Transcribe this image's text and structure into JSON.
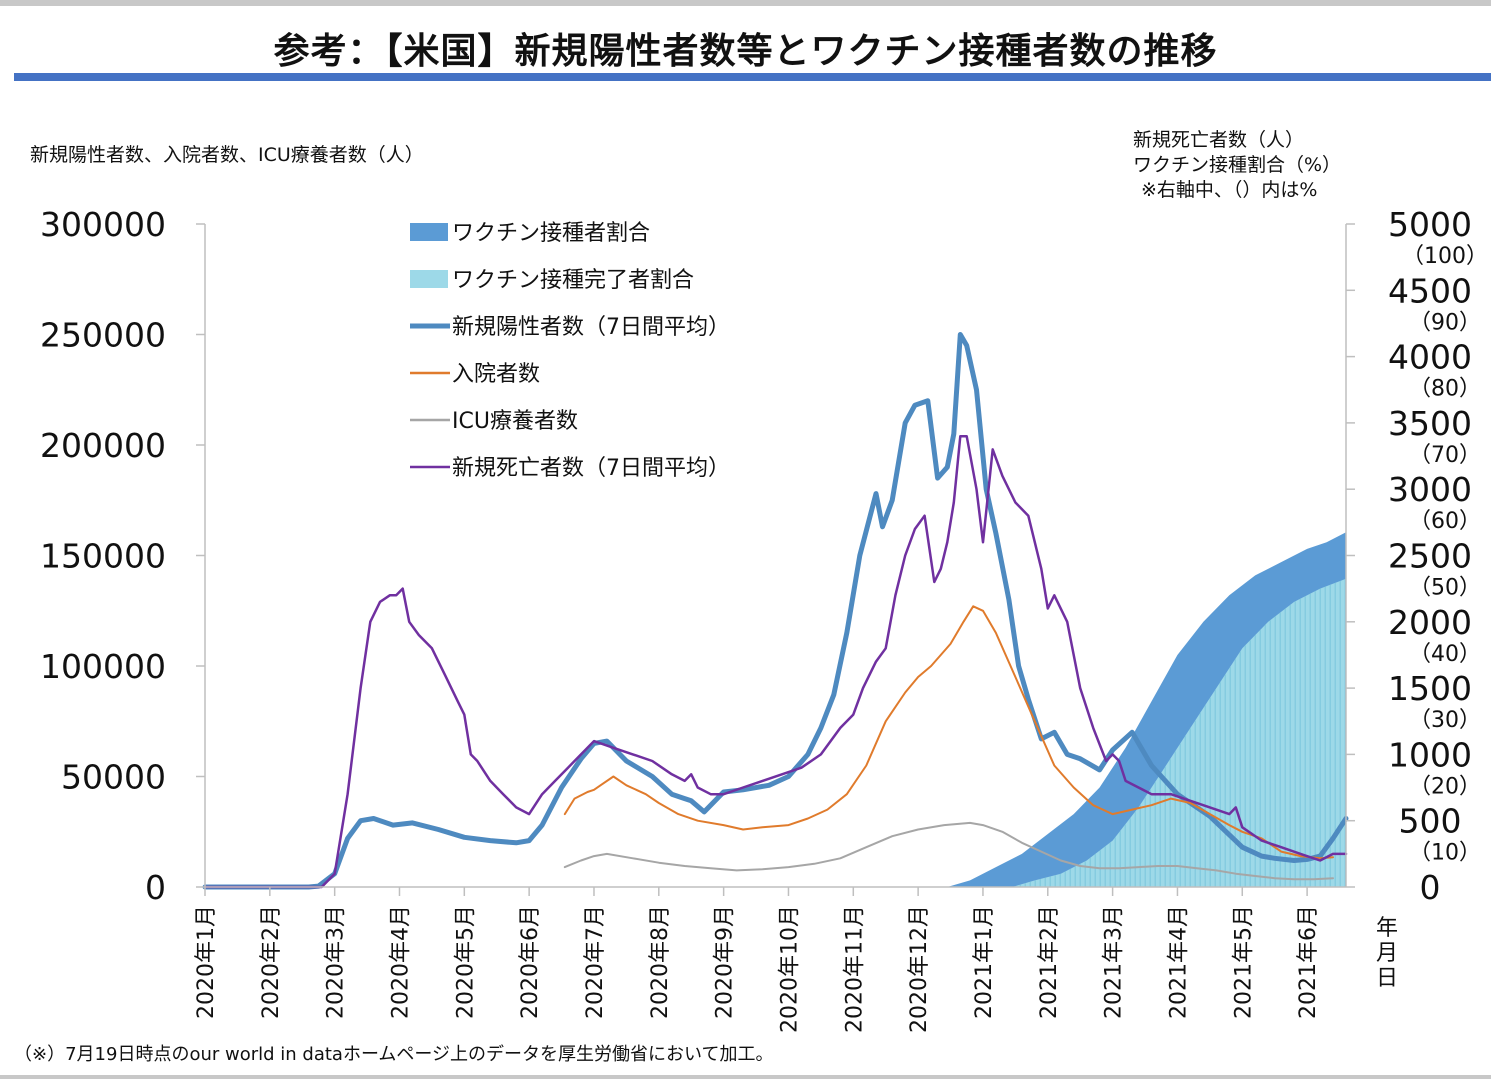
{
  "title": "参考：【米国】新規陽性者数等とワクチン接種者数の推移",
  "left_axis_title": "新規陽性者数、入院者数、ICU療養者数（人）",
  "right_axis_title": [
    "新規死亡者数（人）",
    "ワクチン接種割合（%）",
    "※右軸中、（）内は%"
  ],
  "footnote": "（※）7月19日時点のour world in dataホームページ上のデータを厚生労働省において加工。",
  "x_unit_label": [
    "年",
    "月",
    "日"
  ],
  "chart_data": {
    "type": "line",
    "x_ticks": [
      "2020年1月",
      "2020年2月",
      "2020年3月",
      "2020年4月",
      "2020年5月",
      "2020年6月",
      "2020年7月",
      "2020年8月",
      "2020年9月",
      "2020年10月",
      "2020年11月",
      "2020年12月",
      "2021年1月",
      "2021年2月",
      "2021年3月",
      "2021年4月",
      "2021年5月",
      "2021年6月"
    ],
    "x_range_months": [
      0,
      17.6
    ],
    "y_left_ticks": [
      "300000",
      "250000",
      "200000",
      "150000",
      "100000",
      "50000",
      "0"
    ],
    "y_left_range": [
      0,
      300000
    ],
    "y_right_ticks": [
      {
        "main": "5000",
        "sub": "（100）"
      },
      {
        "main": "4500",
        "sub": "（90）"
      },
      {
        "main": "4000",
        "sub": "（80）"
      },
      {
        "main": "3500",
        "sub": "（70）"
      },
      {
        "main": "3000",
        "sub": "（60）"
      },
      {
        "main": "2500",
        "sub": "（50）"
      },
      {
        "main": "2000",
        "sub": "（40）"
      },
      {
        "main": "1500",
        "sub": "（30）"
      },
      {
        "main": "1000",
        "sub": "（20）"
      },
      {
        "main": "500",
        "sub": "（10）"
      },
      {
        "main": "0",
        "sub": ""
      }
    ],
    "y_right_range": [
      0,
      5000
    ],
    "series": [
      {
        "name": "ワクチン接種者割合",
        "axis": "right_pct",
        "color": "#5b9bd5",
        "style": "area",
        "x": [
          11.45,
          11.8,
          12.2,
          12.6,
          13.0,
          13.4,
          13.8,
          14.2,
          14.6,
          15.0,
          15.4,
          15.8,
          16.2,
          16.6,
          17.0,
          17.3,
          17.6
        ],
        "y": [
          0,
          1,
          3,
          5,
          8,
          11,
          15,
          21,
          28,
          35,
          40,
          44,
          47,
          49,
          51,
          52,
          53.5
        ]
      },
      {
        "name": "ワクチン接種完了者割合",
        "axis": "right_pct",
        "color": "#9dd9e8",
        "style": "area",
        "x": [
          12.45,
          12.8,
          13.2,
          13.6,
          14.0,
          14.4,
          14.8,
          15.2,
          15.6,
          16.0,
          16.4,
          16.8,
          17.2,
          17.6
        ],
        "y": [
          0,
          1,
          2,
          4,
          7,
          12,
          18,
          24,
          30,
          36,
          40,
          43,
          45,
          46.5
        ]
      },
      {
        "name": "新規陽性者数（7日間平均）",
        "axis": "left",
        "color": "#4e8ac0",
        "style": "line",
        "width": 5,
        "x": [
          0,
          1.0,
          1.6,
          1.75,
          2.0,
          2.2,
          2.4,
          2.6,
          2.9,
          3.2,
          3.6,
          4.0,
          4.4,
          4.8,
          5.0,
          5.2,
          5.5,
          5.8,
          6.0,
          6.2,
          6.5,
          6.9,
          7.2,
          7.4,
          7.5,
          7.7,
          8.0,
          8.3,
          8.7,
          9.0,
          9.3,
          9.5,
          9.7,
          9.9,
          10.1,
          10.35,
          10.45,
          10.6,
          10.8,
          10.95,
          11.15,
          11.3,
          11.45,
          11.55,
          11.65,
          11.75,
          11.9,
          12.05,
          12.2,
          12.4,
          12.55,
          12.7,
          12.9,
          13.1,
          13.3,
          13.5,
          13.8,
          14.0,
          14.3,
          14.6,
          15.0,
          15.5,
          16.0,
          16.3,
          16.5,
          16.8,
          17.0,
          17.2,
          17.4,
          17.6
        ],
        "y": [
          0,
          0,
          0,
          400,
          6000,
          22000,
          30000,
          31000,
          28000,
          29000,
          26000,
          22500,
          21000,
          20000,
          21000,
          28000,
          45000,
          58000,
          65000,
          66000,
          57000,
          50000,
          42000,
          40000,
          39000,
          34000,
          43000,
          44000,
          46000,
          50000,
          60000,
          72000,
          87000,
          115000,
          150000,
          178000,
          163000,
          175000,
          210000,
          218000,
          220000,
          185000,
          190000,
          205000,
          250000,
          245000,
          225000,
          180000,
          160000,
          130000,
          100000,
          85000,
          67000,
          70000,
          60000,
          58000,
          53000,
          62000,
          70000,
          55000,
          42000,
          32000,
          18000,
          14000,
          13000,
          12000,
          12500,
          14000,
          22000,
          31000
        ]
      },
      {
        "name": "入院者数",
        "axis": "left",
        "color": "#e07b2c",
        "style": "line",
        "width": 2,
        "x": [
          5.55,
          5.7,
          5.9,
          6.0,
          6.1,
          6.3,
          6.5,
          6.8,
          7.0,
          7.3,
          7.6,
          8.0,
          8.3,
          8.6,
          9.0,
          9.3,
          9.6,
          9.9,
          10.2,
          10.5,
          10.8,
          11.0,
          11.2,
          11.5,
          11.7,
          11.85,
          12.0,
          12.2,
          12.5,
          12.8,
          13.1,
          13.4,
          13.7,
          14.0,
          14.3,
          14.6,
          14.9,
          15.2,
          15.5,
          15.8,
          16.0,
          16.3,
          16.6,
          16.9,
          17.2,
          17.4
        ],
        "y": [
          33000,
          40000,
          43000,
          44000,
          46000,
          50000,
          46000,
          42000,
          38000,
          33000,
          30000,
          28000,
          26000,
          27000,
          28000,
          31000,
          35000,
          42000,
          55000,
          75000,
          88000,
          95000,
          100000,
          110000,
          120000,
          127000,
          125000,
          115000,
          95000,
          75000,
          55000,
          45000,
          37000,
          33000,
          35000,
          37000,
          40000,
          38000,
          33000,
          28000,
          25000,
          22000,
          16000,
          14000,
          13000,
          13500
        ]
      },
      {
        "name": "ICU療養者数",
        "axis": "left",
        "color": "#a6a6a6",
        "style": "line",
        "width": 2,
        "x": [
          5.55,
          5.8,
          6.0,
          6.2,
          6.6,
          7.0,
          7.4,
          7.8,
          8.2,
          8.6,
          9.0,
          9.4,
          9.8,
          10.2,
          10.6,
          11.0,
          11.4,
          11.8,
          12.0,
          12.3,
          12.6,
          12.9,
          13.2,
          13.5,
          13.8,
          14.1,
          14.4,
          14.7,
          15.0,
          15.3,
          15.6,
          15.9,
          16.2,
          16.5,
          16.8,
          17.1,
          17.4
        ],
        "y": [
          9000,
          12000,
          14000,
          15000,
          13000,
          11000,
          9500,
          8500,
          7500,
          8000,
          9000,
          10500,
          13000,
          18000,
          23000,
          26000,
          28000,
          29000,
          28000,
          25000,
          20000,
          16000,
          12000,
          9500,
          8500,
          8500,
          9000,
          9500,
          9500,
          8500,
          7500,
          6000,
          5000,
          4000,
          3500,
          3500,
          4000
        ]
      },
      {
        "name": "新規死亡者数（7日間平均）",
        "axis": "right",
        "color": "#7030a0",
        "style": "line",
        "width": 2.5,
        "x": [
          0,
          1.8,
          2.0,
          2.2,
          2.4,
          2.55,
          2.7,
          2.85,
          2.95,
          3.05,
          3.15,
          3.3,
          3.5,
          3.7,
          3.9,
          4.0,
          4.1,
          4.2,
          4.4,
          4.6,
          4.8,
          5.0,
          5.2,
          5.4,
          5.6,
          5.8,
          6.0,
          6.3,
          6.6,
          6.9,
          7.2,
          7.4,
          7.5,
          7.6,
          7.8,
          8.0,
          8.3,
          8.6,
          8.9,
          9.2,
          9.5,
          9.8,
          10.0,
          10.15,
          10.25,
          10.35,
          10.5,
          10.65,
          10.8,
          10.95,
          11.1,
          11.25,
          11.35,
          11.45,
          11.55,
          11.65,
          11.75,
          11.9,
          12.0,
          12.15,
          12.3,
          12.5,
          12.7,
          12.9,
          13.0,
          13.1,
          13.3,
          13.5,
          13.7,
          13.9,
          14.0,
          14.1,
          14.2,
          14.4,
          14.6,
          14.9,
          15.2,
          15.5,
          15.8,
          15.9,
          16.0,
          16.3,
          16.6,
          16.9,
          17.2,
          17.4,
          17.6
        ],
        "y": [
          0,
          0,
          100,
          700,
          1500,
          2000,
          2150,
          2200,
          2200,
          2250,
          2000,
          1900,
          1800,
          1600,
          1400,
          1300,
          1000,
          950,
          800,
          700,
          600,
          550,
          700,
          800,
          900,
          1000,
          1100,
          1050,
          1000,
          950,
          850,
          800,
          850,
          750,
          700,
          700,
          750,
          800,
          850,
          900,
          1000,
          1200,
          1300,
          1500,
          1600,
          1700,
          1800,
          2200,
          2500,
          2700,
          2800,
          2300,
          2400,
          2600,
          2900,
          3400,
          3400,
          3000,
          2600,
          3300,
          3100,
          2900,
          2800,
          2400,
          2100,
          2200,
          2000,
          1500,
          1200,
          950,
          1000,
          950,
          800,
          750,
          700,
          700,
          650,
          600,
          550,
          600,
          450,
          350,
          300,
          250,
          200,
          250,
          250
        ]
      }
    ]
  }
}
